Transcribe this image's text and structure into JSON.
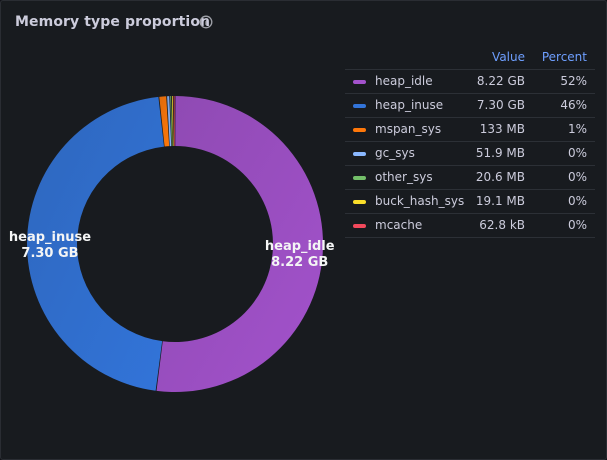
{
  "panel": {
    "title": "Memory type proportion",
    "info_icon": "info-circle-icon"
  },
  "legend": {
    "headers": {
      "value": "Value",
      "percent": "Percent"
    }
  },
  "chart_data": {
    "type": "pie",
    "style": "donut",
    "title": "Memory type proportion",
    "legend_position": "right",
    "slices": [
      {
        "name": "heap_idle",
        "value": 8.22,
        "unit": "GB",
        "value_label": "8.22 GB",
        "percent_label": "52%",
        "color": "#a352cc",
        "show_label": true
      },
      {
        "name": "heap_inuse",
        "value": 7.3,
        "unit": "GB",
        "value_label": "7.30 GB",
        "percent_label": "46%",
        "color": "#3274d9",
        "show_label": true
      },
      {
        "name": "mspan_sys",
        "value": 0.133,
        "unit": "GB",
        "value_label": "133 MB",
        "percent_label": "1%",
        "color": "#ff780a",
        "show_label": false
      },
      {
        "name": "gc_sys",
        "value": 0.0519,
        "unit": "GB",
        "value_label": "51.9 MB",
        "percent_label": "0%",
        "color": "#8ab8ff",
        "show_label": false
      },
      {
        "name": "other_sys",
        "value": 0.0206,
        "unit": "GB",
        "value_label": "20.6 MB",
        "percent_label": "0%",
        "color": "#73bf69",
        "show_label": false
      },
      {
        "name": "buck_hash_sys",
        "value": 0.0191,
        "unit": "GB",
        "value_label": "19.1 MB",
        "percent_label": "0%",
        "color": "#fade2a",
        "show_label": false
      },
      {
        "name": "mcache",
        "value": 6.28e-05,
        "unit": "GB",
        "value_label": "62.8 kB",
        "percent_label": "0%",
        "color": "#f2495c",
        "show_label": false
      }
    ]
  }
}
